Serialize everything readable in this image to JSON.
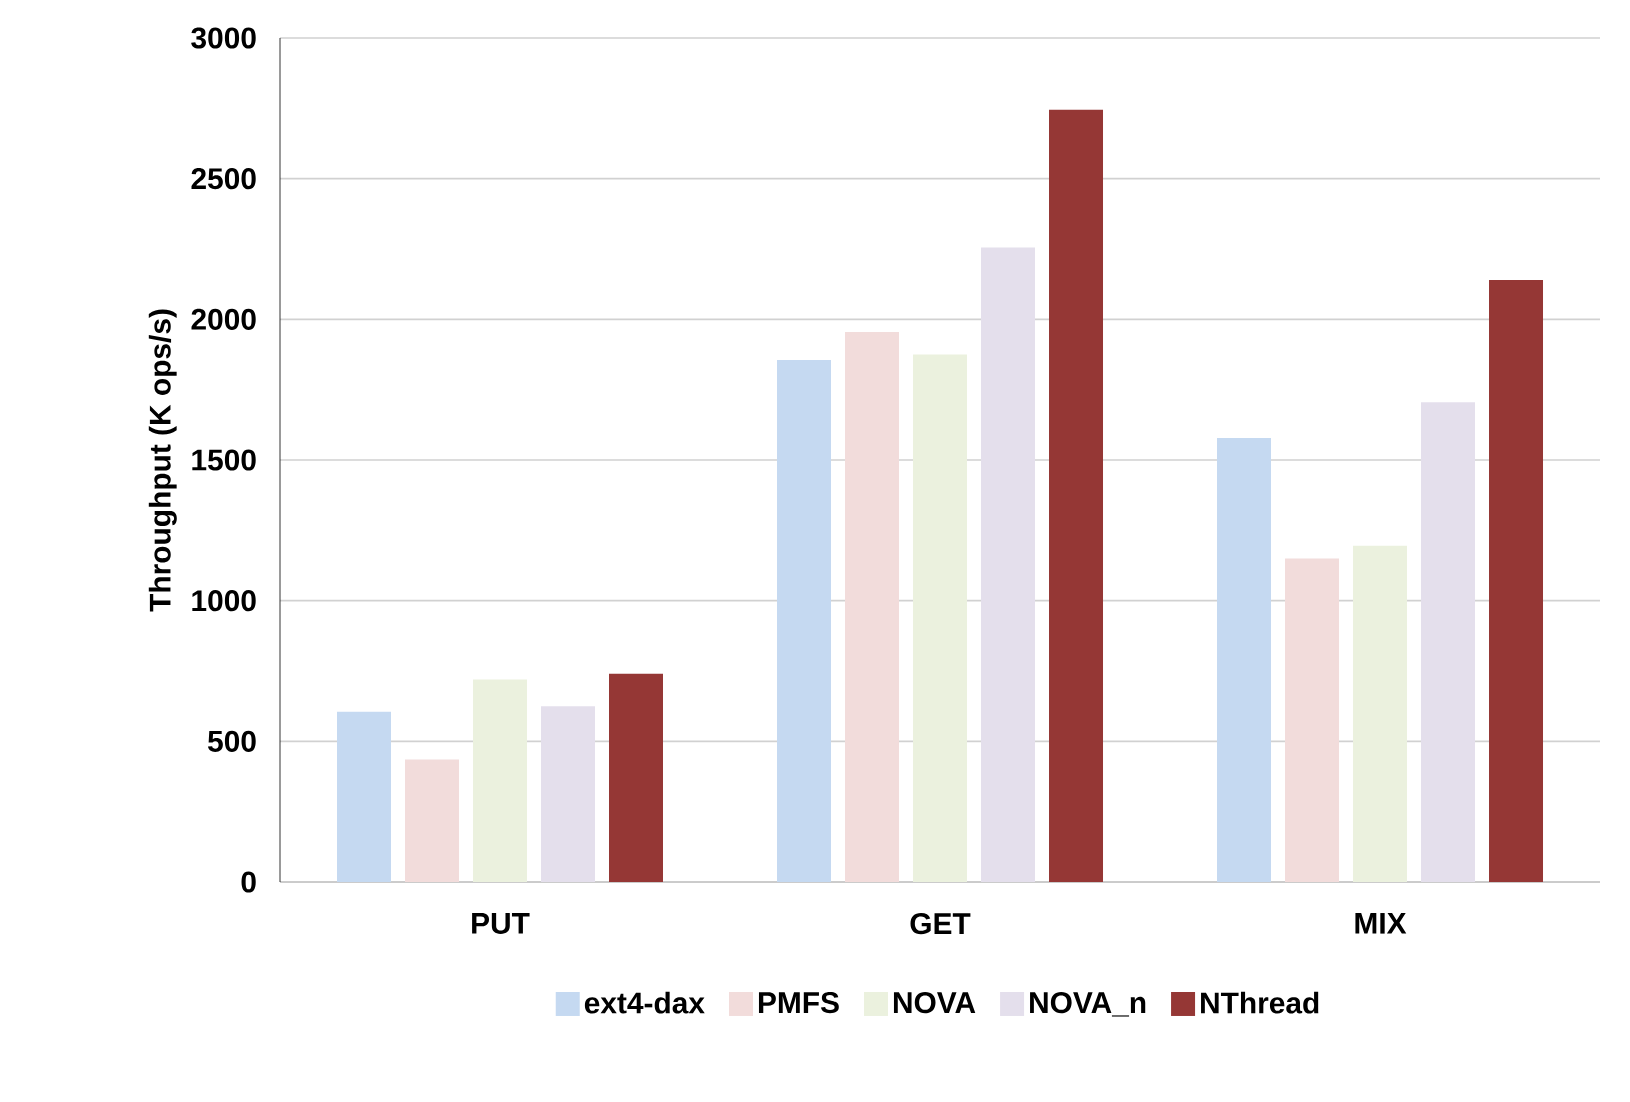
{
  "chart_data": {
    "type": "bar",
    "ylabel": "Throughput (K ops/s)",
    "categories": [
      "PUT",
      "GET",
      "MIX"
    ],
    "series": [
      {
        "name": "ext4-dax",
        "color": "#c5d9f1",
        "values": [
          605,
          1855,
          1578
        ]
      },
      {
        "name": "PMFS",
        "color": "#f2dcdb",
        "values": [
          435,
          1955,
          1150
        ]
      },
      {
        "name": "NOVA",
        "color": "#ebf1de",
        "values": [
          720,
          1875,
          1195
        ]
      },
      {
        "name": "NOVA_n",
        "color": "#e4dfec",
        "values": [
          625,
          2255,
          1705
        ]
      },
      {
        "name": "NThread",
        "color": "#953735",
        "values": [
          740,
          2745,
          2140
        ]
      }
    ],
    "ylim": [
      0,
      3000
    ],
    "yticks": [
      0,
      500,
      1000,
      1500,
      2000,
      2500,
      3000
    ],
    "grid": "y",
    "legend": "bottom"
  }
}
